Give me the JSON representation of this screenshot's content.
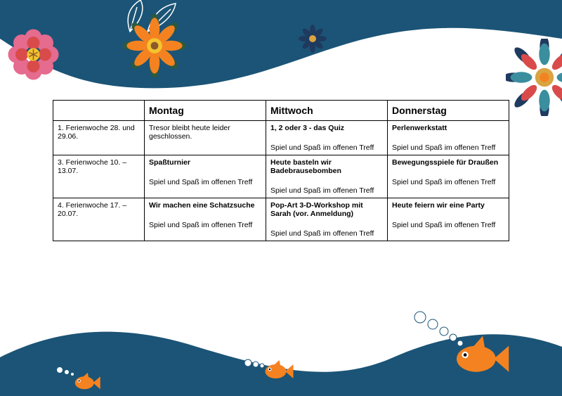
{
  "colors": {
    "water": "#1b5476",
    "white": "#ffffff",
    "orange": "#f58220",
    "darkgreen": "#2d5a3d",
    "leafgreen": "#4a7a3f",
    "pink": "#e56b8f",
    "red": "#d94b4b",
    "yellow": "#f4c430",
    "navy": "#1f3a5f",
    "teal": "#3a8e9e",
    "gold": "#d9a441",
    "bubbleOutline": "#1b5476"
  },
  "table": {
    "headers": [
      "",
      "Montag",
      "Mittwoch",
      "Donnerstag"
    ],
    "rows": [
      {
        "label": "1. Ferienwoche 28. und 29.06.",
        "mon_main": "Tresor bleibt heute leider geschlossen.",
        "mon_main_bold": false,
        "mon_sub": "",
        "mit_main": "1, 2 oder 3 - das Quiz",
        "mit_main_bold": true,
        "mit_sub": "Spiel und Spaß im offenen Treff",
        "don_main": "Perlenwerkstatt",
        "don_main_bold": true,
        "don_sub": "Spiel und Spaß im offenen Treff"
      },
      {
        "label": "3. Ferienwoche 10. – 13.07.",
        "mon_main": "Spaßturnier",
        "mon_main_bold": true,
        "mon_sub": "Spiel und Spaß im offenen Treff",
        "mit_main": "Heute basteln wir Badebrausebomben",
        "mit_main_bold": true,
        "mit_sub": "Spiel und Spaß im offenen Treff",
        "don_main": "Bewegungsspiele für Draußen",
        "don_main_bold": true,
        "don_sub": "Spiel und Spaß im offenen Treff"
      },
      {
        "label": "4. Ferienwoche 17. – 20.07.",
        "mon_main": "Wir machen eine Schatzsuche",
        "mon_main_bold": true,
        "mon_sub": "Spiel und Spaß im offenen Treff",
        "mit_main": "Pop-Art 3-D-Workshop mit Sarah (vor. Anmeldung)",
        "mit_main_bold": true,
        "mit_sub": "Spiel und Spaß im offenen Treff",
        "don_main": "Heute feiern wir eine Party",
        "don_main_bold": true,
        "don_sub": "Spiel und Spaß im offenen Treff"
      }
    ]
  }
}
